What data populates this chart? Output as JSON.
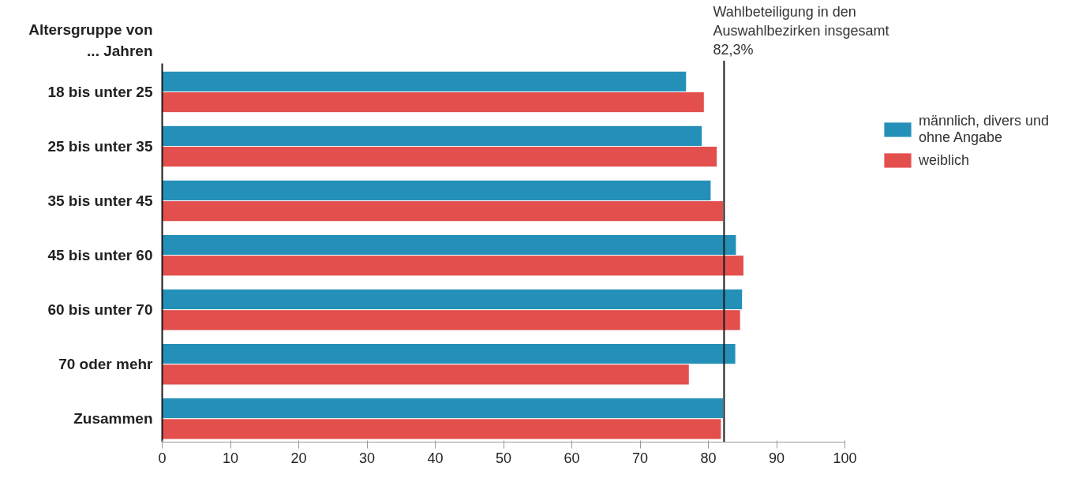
{
  "chart_data": {
    "type": "bar",
    "orientation": "horizontal",
    "ylabel": "Altersgruppe von ... Jahren",
    "categories": [
      "18 bis unter 25",
      "25 bis unter 35",
      "35 bis unter 45",
      "45 bis unter 60",
      "60 bis unter 70",
      "70 oder mehr",
      "Zusammen"
    ],
    "series": [
      {
        "name": "männlich, divers und ohne Angabe",
        "color": "#2490b8",
        "values": [
          76.8,
          79.1,
          80.4,
          84.1,
          85.0,
          84.0,
          82.2
        ]
      },
      {
        "name": "weiblich",
        "color": "#e24f4d",
        "values": [
          79.4,
          81.3,
          82.2,
          85.2,
          84.7,
          77.2,
          81.9
        ]
      }
    ],
    "xlim": [
      0,
      100
    ],
    "xticks": [
      0,
      10,
      20,
      30,
      40,
      50,
      60,
      70,
      80,
      90,
      100
    ],
    "ref_lines": [
      {
        "axis": "x",
        "value": 82.3,
        "label": "Wahlbeteiligung in den Auswahlbezirken insgesamt 82,3%",
        "color": "#1a1a1a"
      }
    ],
    "grid": false,
    "legend": "top right"
  }
}
